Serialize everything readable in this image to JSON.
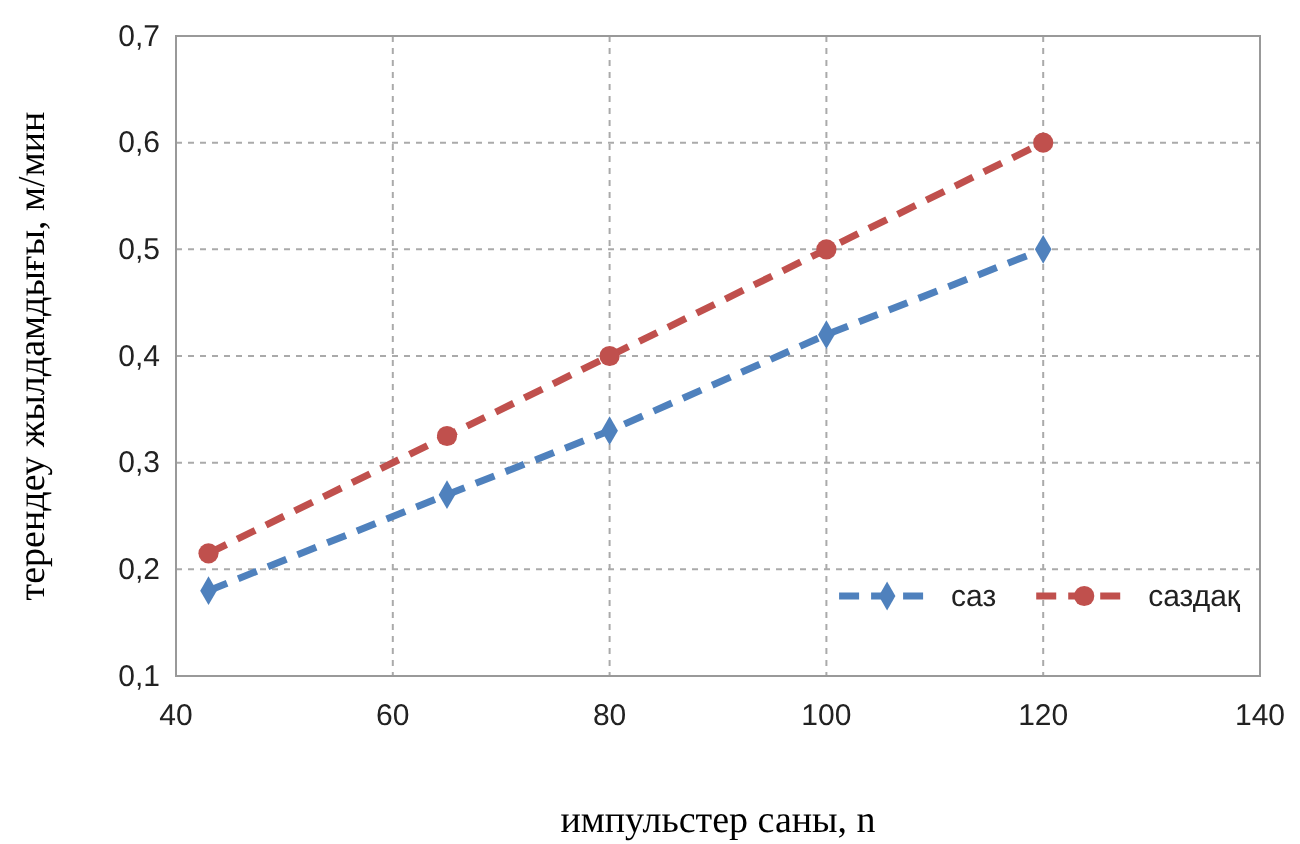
{
  "chart_data": {
    "type": "line",
    "xlabel": "импульстер саны, n",
    "ylabel": "терендеу жылдамдығы, м/мин",
    "x": [
      43,
      65,
      80,
      100,
      120
    ],
    "series": [
      {
        "name": "саз",
        "color": "#4f81bd",
        "values": [
          0.18,
          0.27,
          0.33,
          0.42,
          0.5
        ],
        "marker": "diamond"
      },
      {
        "name": "саздақ",
        "color": "#c0504d",
        "values": [
          0.215,
          0.325,
          0.4,
          0.5,
          0.6
        ],
        "marker": "circle"
      }
    ],
    "xlim": [
      40,
      140
    ],
    "xticks": [
      40,
      60,
      80,
      100,
      120,
      140
    ],
    "ylim": [
      0.1,
      0.7
    ],
    "yticks": [
      {
        "value": 0.1,
        "label": "0,1"
      },
      {
        "value": 0.2,
        "label": "0,2"
      },
      {
        "value": 0.3,
        "label": "0,3"
      },
      {
        "value": 0.4,
        "label": "0,4"
      },
      {
        "value": 0.5,
        "label": "0,5"
      },
      {
        "value": 0.6,
        "label": "0,6"
      },
      {
        "value": 0.7,
        "label": "0,7"
      }
    ],
    "grid": true,
    "legend": "bottom right",
    "line_style": "dashed"
  }
}
